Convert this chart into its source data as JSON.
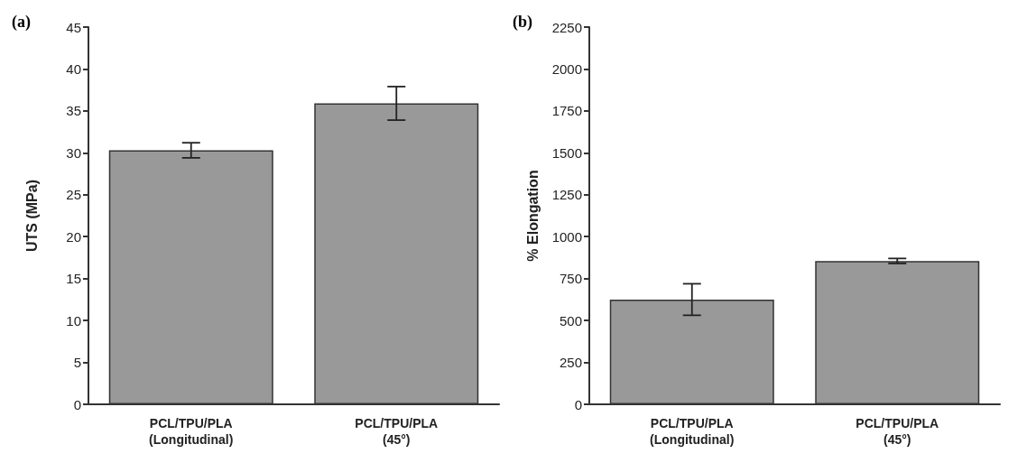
{
  "chart_data": [
    {
      "type": "bar",
      "title": "(a)",
      "ylabel": "UTS (MPa)",
      "categories": [
        "PCL/TPU/PLA\n(Longitudinal)",
        "PCL/TPU/PLA\n(45°)"
      ],
      "values": [
        30.3,
        35.9
      ],
      "errors": [
        0.9,
        2.0
      ],
      "color": "#999999",
      "ylim": [
        0,
        45
      ],
      "yticks": [
        0,
        5,
        10,
        15,
        20,
        25,
        30,
        35,
        40,
        45
      ],
      "grid": false
    },
    {
      "type": "bar",
      "title": "(b)",
      "ylabel": "% Elongation",
      "categories": [
        "PCL/TPU/PLA\n(Longitudinal)",
        "PCL/TPU/PLA\n(45°)"
      ],
      "values": [
        625,
        855
      ],
      "errors": [
        94,
        15
      ],
      "color": "#999999",
      "ylim": [
        0,
        2250
      ],
      "yticks": [
        0,
        250,
        500,
        750,
        1000,
        1250,
        1500,
        1750,
        2000,
        2250
      ],
      "grid": false
    }
  ]
}
